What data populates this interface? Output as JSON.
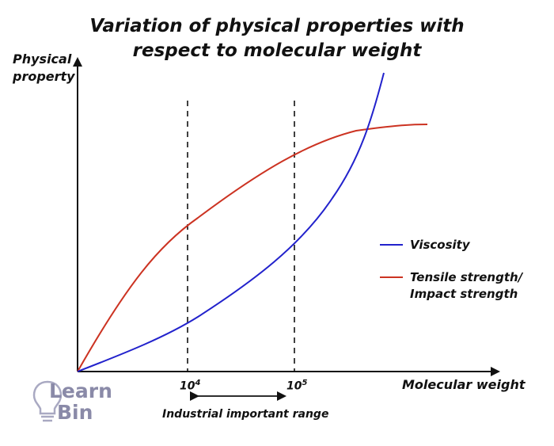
{
  "title": {
    "line1": "Variation of physical properties with",
    "line2": "respect to molecular weight"
  },
  "axes": {
    "y_label_line1": "Physical",
    "y_label_line2": "property",
    "x_label": "Molecular weight",
    "x_ticks": [
      {
        "base": "10",
        "exp": "4"
      },
      {
        "base": "10",
        "exp": "5"
      }
    ]
  },
  "range_label": "Industrial important range",
  "legend": {
    "items": [
      {
        "label_line1": "Viscosity",
        "label_line2": "",
        "color": "#2222cc"
      },
      {
        "label_line1": "Tensile strength/",
        "label_line2": "Impact strength",
        "color": "#cc3322"
      }
    ]
  },
  "logo": {
    "line1": "Learn",
    "line2": "Bin",
    "color": "#8a8aa8"
  },
  "colors": {
    "axis": "#111111",
    "viscosity": "#2222cc",
    "tensile": "#cc3322"
  }
}
